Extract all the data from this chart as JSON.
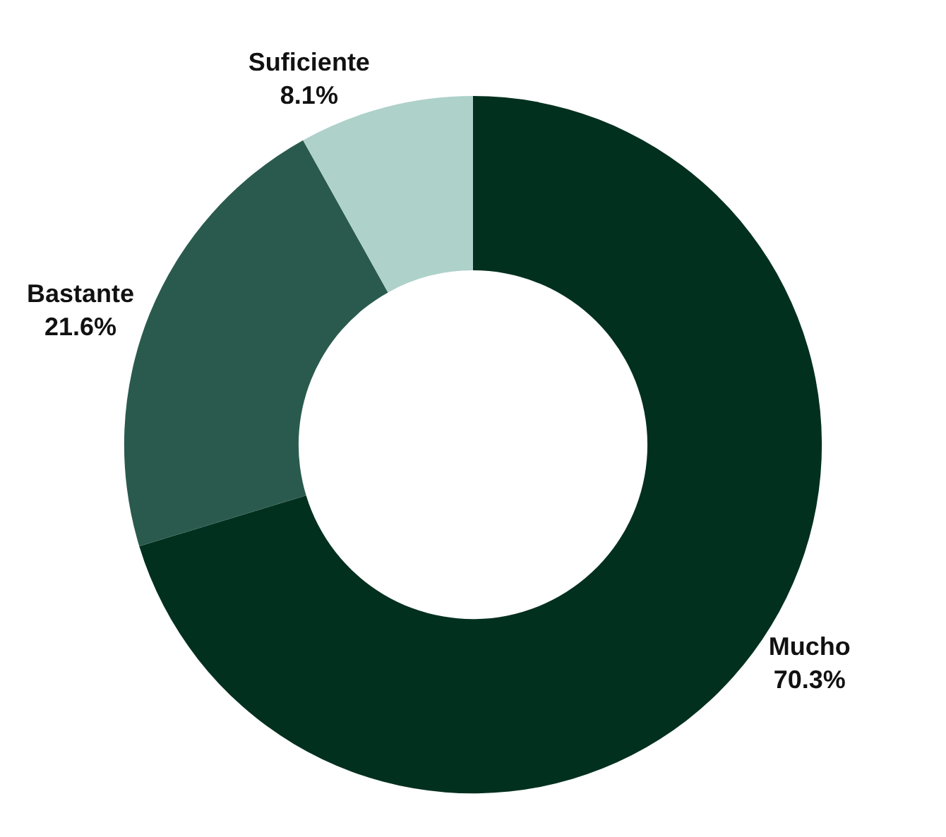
{
  "chart_data": {
    "type": "donut",
    "categories": [
      "Mucho",
      "Bastante",
      "Suficiente"
    ],
    "values": [
      70.3,
      21.6,
      8.1
    ],
    "value_labels": [
      "70.3%",
      "21.6%",
      "8.1%"
    ],
    "colors": [
      "#02301f",
      "#2a5a4e",
      "#aed1ca"
    ],
    "legend": false
  }
}
